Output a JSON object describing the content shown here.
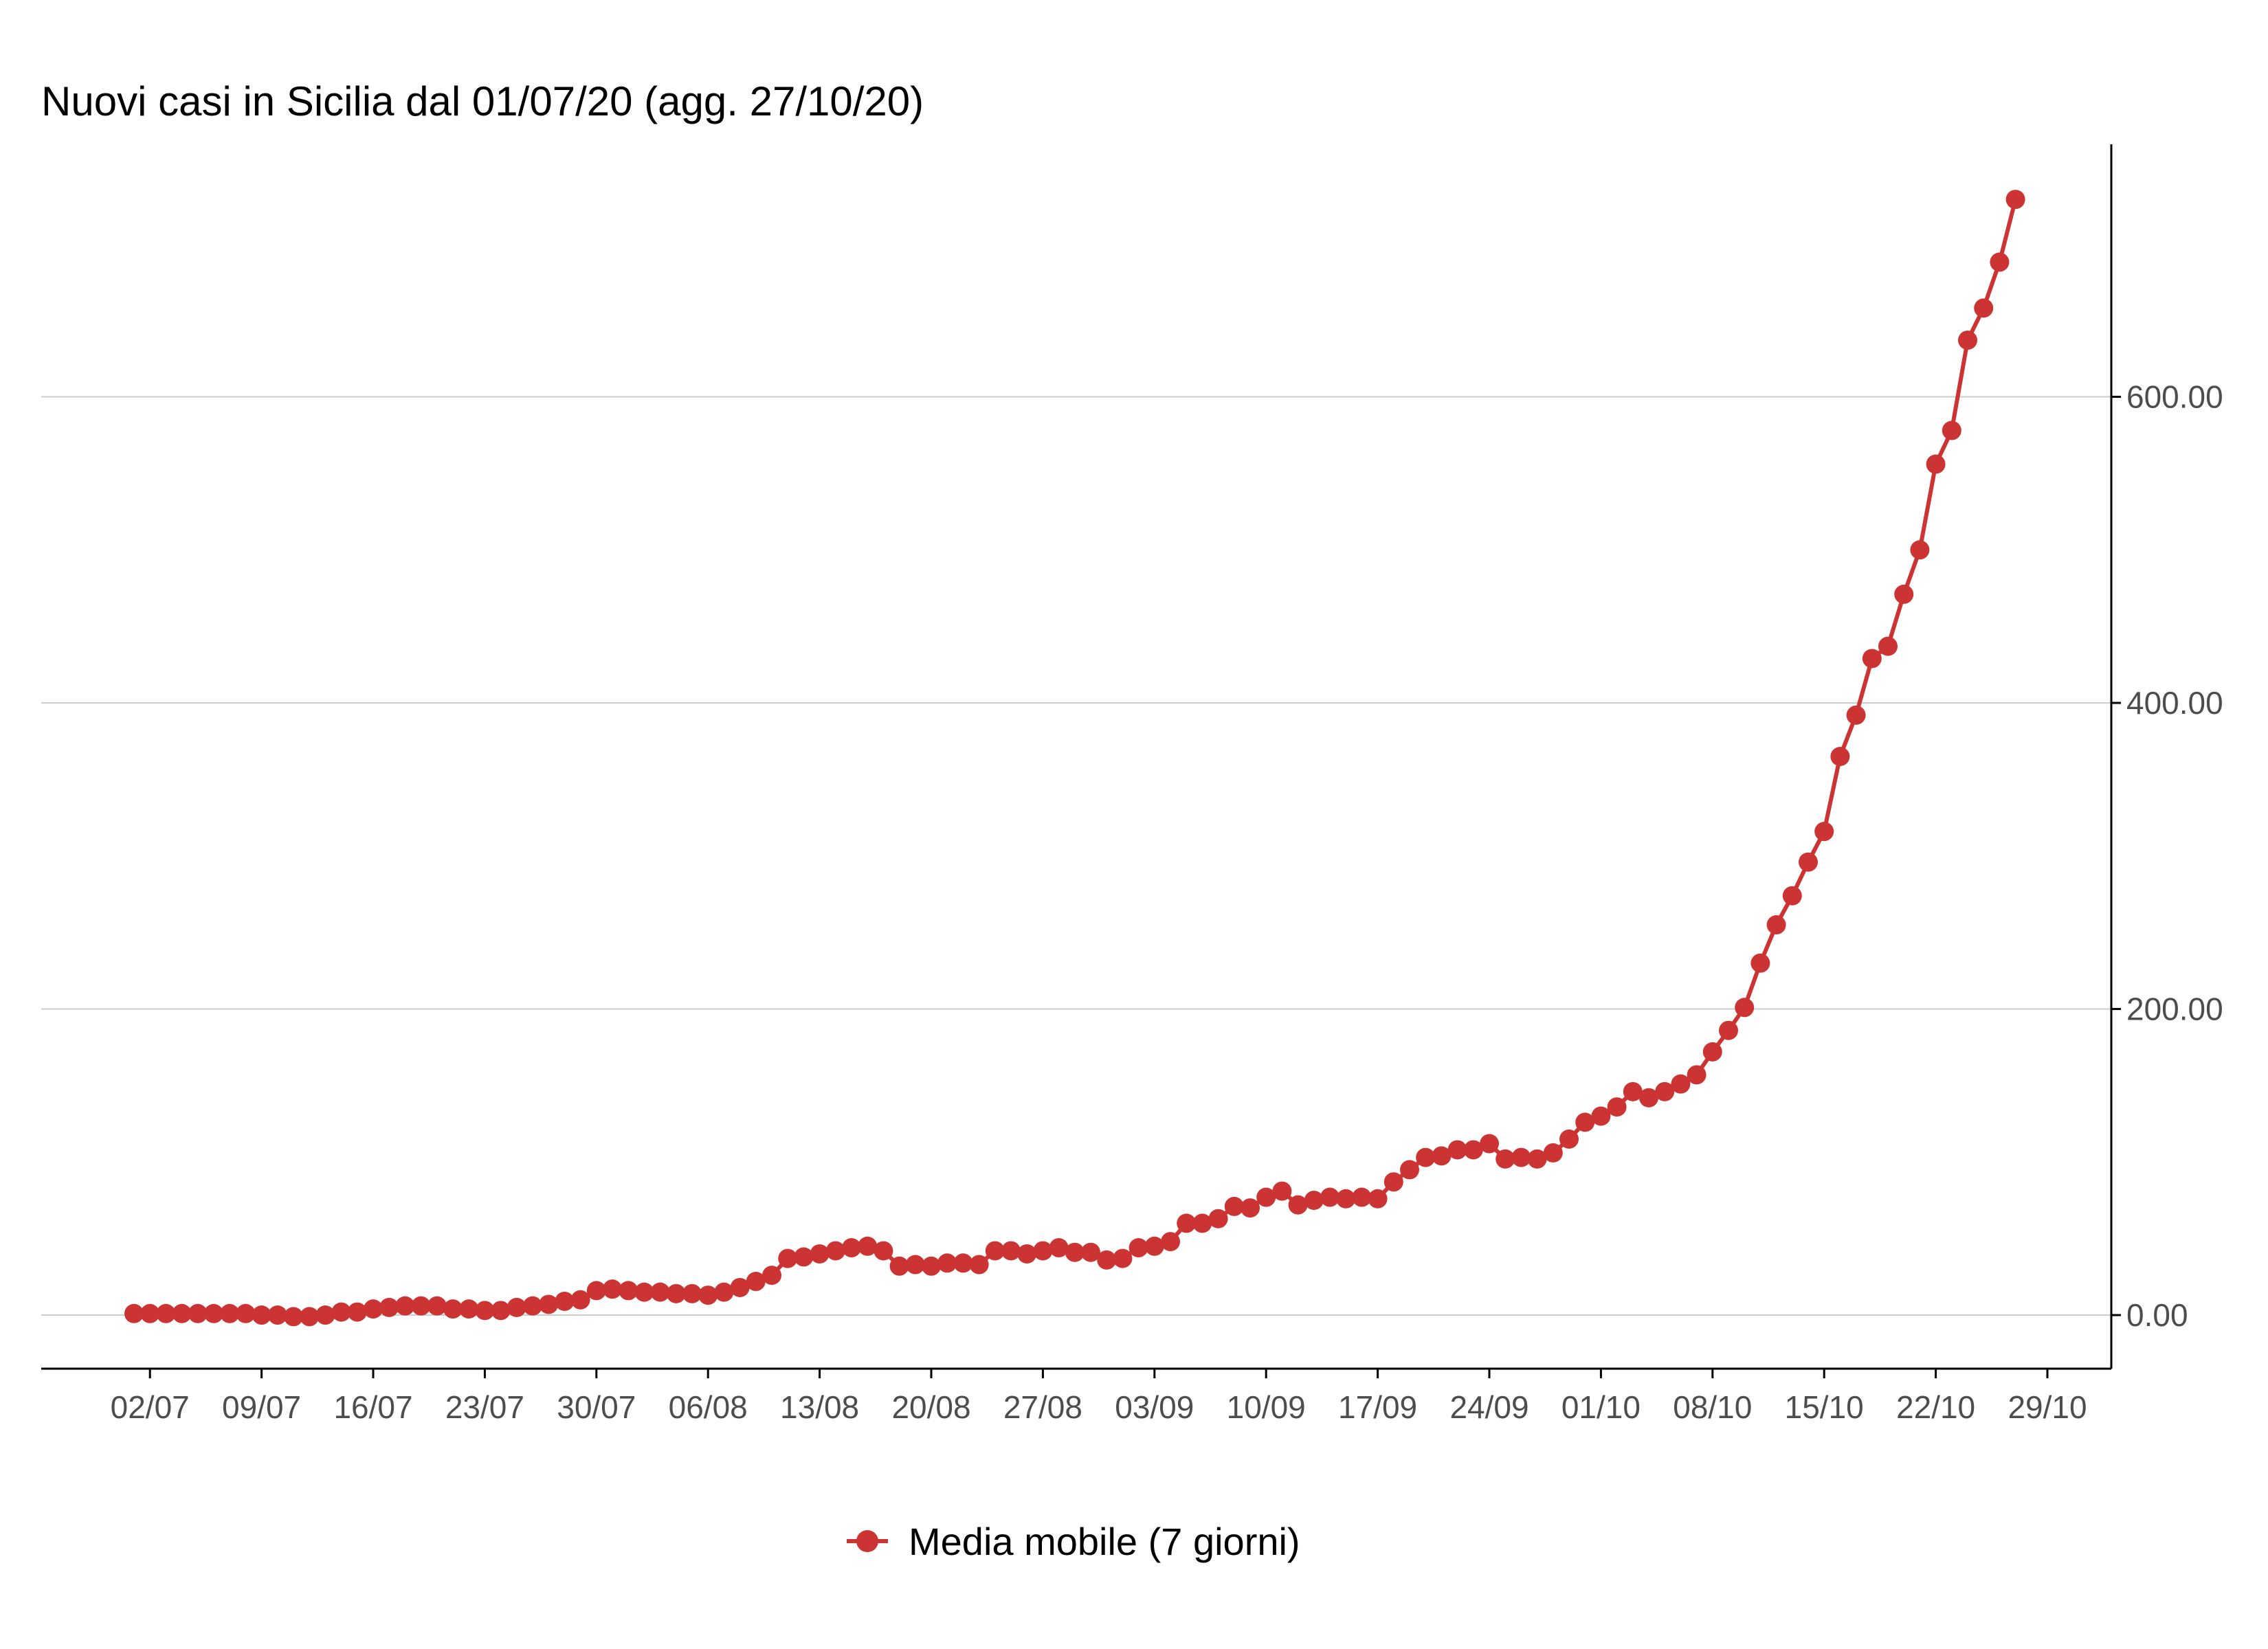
{
  "chart_data": {
    "type": "line",
    "title": "Nuovi casi in Sicilia dal 01/07/20 (agg. 27/10/20)",
    "xlabel": "",
    "ylabel": "",
    "start_date": "2020-07-01",
    "x_ticks": [
      "02/07",
      "09/07",
      "16/07",
      "23/07",
      "30/07",
      "06/08",
      "13/08",
      "20/08",
      "27/08",
      "03/09",
      "10/09",
      "17/09",
      "24/09",
      "01/10",
      "08/10",
      "15/10",
      "22/10",
      "29/10"
    ],
    "y_ticks": [
      "0.00",
      "200.00",
      "400.00",
      "600.00"
    ],
    "ylim": [
      -35,
      765
    ],
    "grid": true,
    "legend_position": "bottom",
    "series": [
      {
        "name": "Media mobile (7 giorni)",
        "color": "#cc3333",
        "values": [
          1,
          1,
          1,
          1,
          1,
          1,
          1,
          1,
          0,
          0,
          -1,
          -1,
          0,
          2,
          2,
          4,
          5,
          6,
          6,
          6,
          4,
          4,
          3,
          3,
          5,
          6,
          7,
          9,
          10,
          16,
          17,
          16,
          15,
          15,
          14,
          14,
          13,
          15,
          18,
          22,
          26,
          37,
          38,
          40,
          42,
          44,
          45,
          42,
          32,
          33,
          32,
          34,
          34,
          33,
          42,
          42,
          40,
          42,
          44,
          41,
          41,
          36,
          37,
          44,
          45,
          48,
          60,
          60,
          63,
          71,
          70,
          77,
          81,
          72,
          75,
          77,
          76,
          77,
          76,
          87,
          95,
          103,
          104,
          108,
          108,
          112,
          102,
          103,
          102,
          106,
          115,
          126,
          130,
          136,
          146,
          142,
          146,
          151,
          157,
          172,
          186,
          201,
          230,
          255,
          274,
          296,
          316,
          365,
          392,
          429,
          437,
          471,
          500,
          556,
          578,
          637,
          658,
          688,
          729
        ]
      }
    ]
  }
}
